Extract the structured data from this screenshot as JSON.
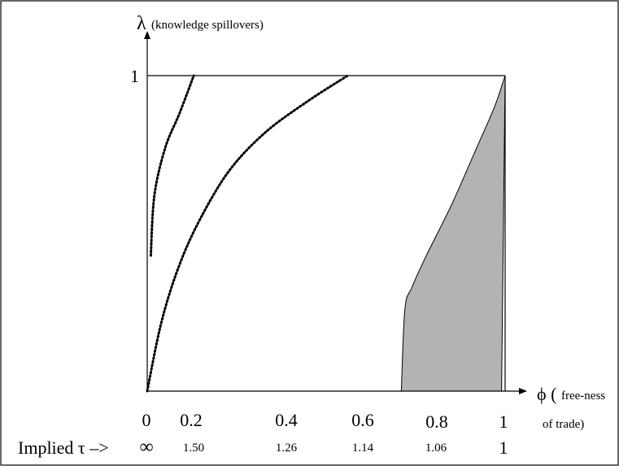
{
  "y_axis": {
    "symbol": "λ",
    "label": "(knowledge spillovers)",
    "tick_1": "1"
  },
  "x_axis": {
    "symbol": "ϕ (",
    "label_part1": "free-ness",
    "label_part2": "of trade)"
  },
  "phi_ticks": [
    "0",
    "0.2",
    "0.4",
    "0.6",
    "0.8",
    "1"
  ],
  "tau_row": {
    "label": "Implied τ –>",
    "values": [
      "∞",
      "1.50",
      "1.26",
      "1.14",
      "1.06",
      "1"
    ]
  },
  "colors": {
    "shaded_region": "#b3b3b3",
    "lines": "#000000"
  },
  "chart_data": {
    "type": "line",
    "xlim": [
      0,
      1
    ],
    "ylim": [
      0,
      1
    ],
    "xlabel": "ϕ (free-ness of trade)",
    "ylabel": "λ (knowledge spillovers)",
    "dotted_curves": [
      {
        "points": [
          [
            0.01,
            0.43
          ],
          [
            0.02,
            0.62
          ],
          [
            0.05,
            0.77
          ],
          [
            0.09,
            0.88
          ],
          [
            0.13,
            1.0
          ]
        ]
      },
      {
        "points": [
          [
            0.0,
            0.0
          ],
          [
            0.04,
            0.22
          ],
          [
            0.09,
            0.4
          ],
          [
            0.15,
            0.55
          ],
          [
            0.23,
            0.7
          ],
          [
            0.33,
            0.82
          ],
          [
            0.45,
            0.92
          ],
          [
            0.56,
            1.0
          ]
        ]
      }
    ],
    "shaded_region": {
      "boundary": [
        [
          0.71,
          0.0
        ],
        [
          0.72,
          0.26
        ],
        [
          0.74,
          0.33
        ],
        [
          0.78,
          0.43
        ],
        [
          0.85,
          0.59
        ],
        [
          0.92,
          0.77
        ],
        [
          0.97,
          0.9
        ],
        [
          1.0,
          1.0
        ],
        [
          0.99,
          0.0
        ]
      ]
    }
  }
}
